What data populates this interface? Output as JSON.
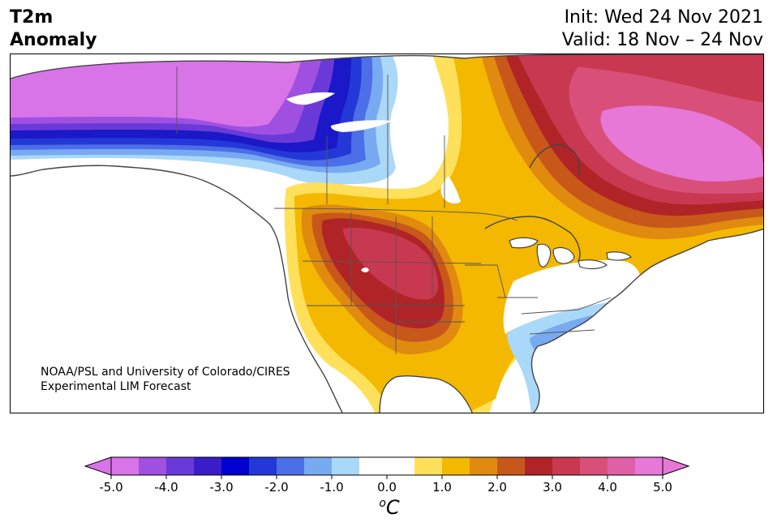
{
  "header": {
    "title_line1": "T2m",
    "title_line2": "Anomaly",
    "init_label": "Init: Wed 24 Nov 2021",
    "valid_label": "Valid: 18 Nov – 24 Nov"
  },
  "credit": {
    "line1": "NOAA/PSL and University of Colorado/CIRES",
    "line2": "Experimental LIM Forecast"
  },
  "colorbar": {
    "ticks": [
      "-5.0",
      "-4.0",
      "-3.0",
      "-2.0",
      "-1.0",
      "0.0",
      "1.0",
      "2.0",
      "3.0",
      "4.0",
      "5.0"
    ],
    "unit_symbol": "C",
    "unit_sup": "o",
    "colors": [
      "#d874e8",
      "#a050e0",
      "#6a3ad8",
      "#3a1cc8",
      "#0000d0",
      "#2438d8",
      "#4c6ee6",
      "#78aaf2",
      "#aad8f8",
      "#ffffff",
      "#ffffff",
      "#ffe05a",
      "#f4b800",
      "#e08a10",
      "#c8581a",
      "#b02428",
      "#c83850",
      "#d8507a",
      "#e060a8",
      "#e878d8"
    ]
  },
  "map": {
    "colors": {
      "deep_purple": "#d874e8",
      "violet": "#a050e0",
      "indigo": "#6a3ad8",
      "deep_blue": "#1a18c8",
      "blue": "#2438d8",
      "mid_blue": "#4c6ee6",
      "light_blue": "#78aaf2",
      "pale_blue": "#aad8f8",
      "yellow": "#ffe05a",
      "gold": "#f4b800",
      "orange": "#e08a10",
      "dark_orange": "#c8581a",
      "red": "#b02428",
      "crimson": "#c83850",
      "rose": "#d8507a",
      "magenta": "#e060a8",
      "pink": "#e878d8",
      "coast": "#444444"
    }
  }
}
